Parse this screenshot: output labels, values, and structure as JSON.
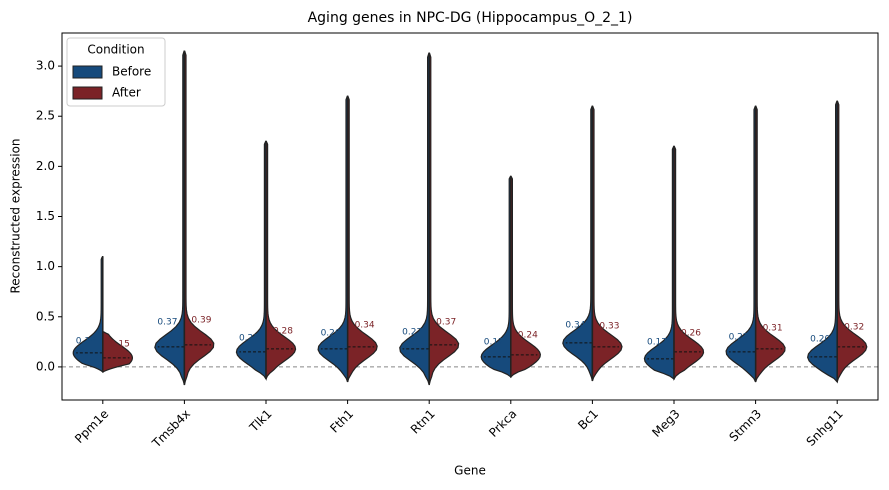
{
  "chart_data": {
    "type": "split_violin",
    "title": "Aging genes in NPC-DG (Hippocampus_O_2_1)",
    "xlabel": "Gene",
    "ylabel": "Reconstructed expression",
    "categories": [
      "Ppm1e",
      "Tmsb4x",
      "Tlk1",
      "Fth1",
      "Rtn1",
      "Prkca",
      "Bc1",
      "Meg3",
      "Stmn3",
      "Snhg11"
    ],
    "legend_title": "Condition",
    "legend": "upper left",
    "series": [
      {
        "name": "Before",
        "color": "#164a7c",
        "values": [
          0.18,
          0.37,
          0.21,
          0.26,
          0.27,
          0.17,
          0.34,
          0.17,
          0.22,
          0.2
        ],
        "value_labels": [
          "0.18",
          "0.37",
          "0.21",
          "0.26",
          "0.27",
          "0.17",
          "0.34",
          "0.17",
          "0.22",
          "0.20"
        ],
        "median": [
          0.14,
          0.2,
          0.15,
          0.18,
          0.18,
          0.1,
          0.24,
          0.08,
          0.15,
          0.1
        ],
        "max": [
          1.1,
          3.15,
          2.25,
          2.7,
          3.13,
          1.9,
          2.6,
          2.2,
          2.6,
          2.65
        ],
        "min": [
          -0.05,
          -0.18,
          -0.12,
          -0.15,
          -0.18,
          -0.1,
          -0.14,
          -0.12,
          -0.15,
          -0.15
        ]
      },
      {
        "name": "After",
        "color": "#7b2327",
        "values": [
          0.15,
          0.39,
          0.28,
          0.34,
          0.37,
          0.24,
          0.33,
          0.26,
          0.31,
          0.32
        ],
        "value_labels": [
          "0.15",
          "0.39",
          "0.28",
          "0.34",
          "0.37",
          "0.24",
          "0.33",
          "0.26",
          "0.31",
          "0.32"
        ],
        "median": [
          0.09,
          0.22,
          0.18,
          0.2,
          0.22,
          0.12,
          0.2,
          0.15,
          0.18,
          0.2
        ],
        "max": [
          0.35,
          3.15,
          2.25,
          2.7,
          3.13,
          1.9,
          2.6,
          2.2,
          2.6,
          2.65
        ],
        "min": [
          -0.05,
          -0.18,
          -0.12,
          -0.15,
          -0.18,
          -0.1,
          -0.14,
          -0.12,
          -0.15,
          -0.15
        ]
      }
    ],
    "reference_line": 0,
    "ylim": [
      -0.33,
      3.33
    ],
    "yticks": [
      {
        "value": 0,
        "label": "0.0"
      },
      {
        "value": 0.5,
        "label": "0.5"
      },
      {
        "value": 1,
        "label": "1.0"
      },
      {
        "value": 1.5,
        "label": "1.5"
      },
      {
        "value": 2,
        "label": "2.0"
      },
      {
        "value": 2.5,
        "label": "2.5"
      },
      {
        "value": 3,
        "label": "3.0"
      }
    ]
  }
}
